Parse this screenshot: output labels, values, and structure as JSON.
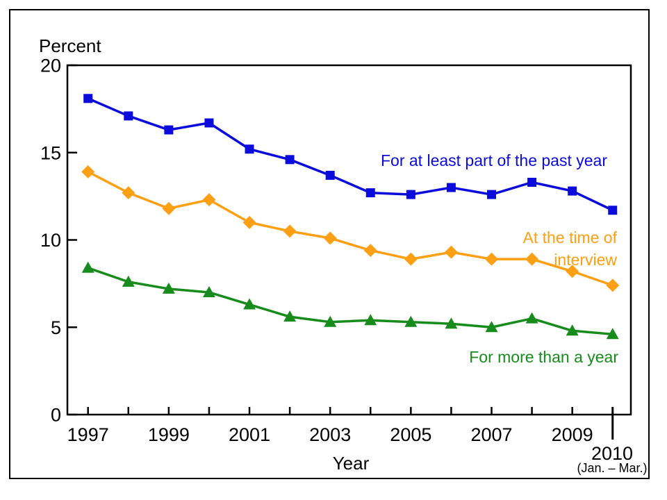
{
  "window": {
    "background_color": "#ffffff",
    "frame_border_color": "#000000"
  },
  "chart_data": {
    "type": "line",
    "title": "",
    "ylabel": "Percent",
    "xlabel": "Year",
    "ylim": [
      0,
      20
    ],
    "yticks": [
      0,
      5,
      10,
      15,
      20
    ],
    "grid": false,
    "legend_position": "inline annotations beside each line",
    "axis_color": "#000000",
    "x": [
      1997,
      1998,
      1999,
      2000,
      2001,
      2002,
      2003,
      2004,
      2005,
      2006,
      2007,
      2008,
      2009,
      2010
    ],
    "xtick_major_indices": [
      0,
      2,
      4,
      6,
      8,
      10,
      12
    ],
    "xtick_major_labels": [
      "1997",
      "1999",
      "2001",
      "2003",
      "2005",
      "2007",
      "2009"
    ],
    "final_x_label": "2010",
    "final_x_sublabel": "(Jan. – Mar.)",
    "series": [
      {
        "name": "For at least part of the past year",
        "label_lines": [
          "For at least part of the past year"
        ],
        "marker": "square",
        "color": "#0b0bdb",
        "values": [
          18.1,
          17.1,
          16.3,
          16.7,
          15.2,
          14.6,
          13.7,
          12.7,
          12.6,
          13.0,
          12.6,
          13.3,
          12.8,
          11.7
        ]
      },
      {
        "name": "At the time of interview",
        "label_lines": [
          "At the time of",
          "interview"
        ],
        "marker": "diamond",
        "color": "#ffa014",
        "values": [
          13.9,
          12.7,
          11.8,
          12.3,
          11.0,
          10.5,
          10.1,
          9.4,
          8.9,
          9.3,
          8.9,
          8.9,
          8.2,
          7.4
        ]
      },
      {
        "name": "For more than a year",
        "label_lines": [
          "For more than a year"
        ],
        "marker": "triangle",
        "color": "#178c1c",
        "values": [
          8.4,
          7.6,
          7.2,
          7.0,
          6.3,
          5.6,
          5.3,
          5.4,
          5.3,
          5.2,
          5.0,
          5.5,
          4.8,
          4.6
        ]
      }
    ]
  }
}
